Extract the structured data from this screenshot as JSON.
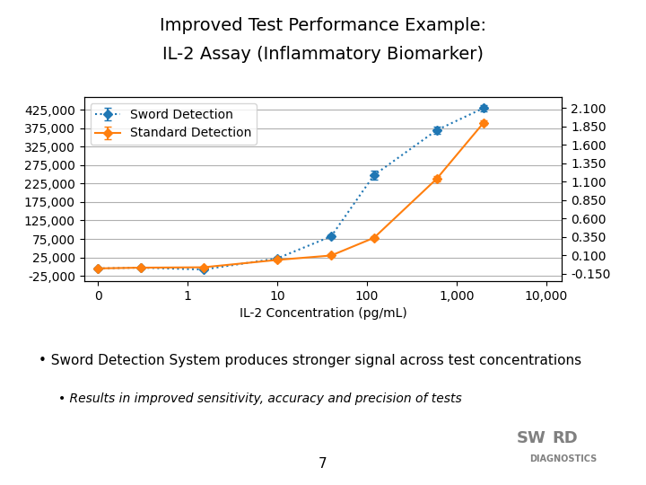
{
  "chart_data": {
    "type": "line",
    "title": "Improved Test Performance Example:",
    "subtitle": "IL-2 Assay (Inflammatory Biomarker)",
    "x_label": "IL-2 Concentration (pg/mL)",
    "log": "x",
    "x": [
      0.1,
      0.3,
      1.5,
      10,
      40,
      120,
      600,
      2000
    ],
    "series": [
      {
        "name": "Sword Detection",
        "line_style": "dotted",
        "marker": "diamond",
        "values": [
          -5000,
          -3000,
          -8000,
          22000,
          82000,
          248000,
          370000,
          430000
        ],
        "errors": [
          3000,
          2500,
          3000,
          4000,
          5000,
          12000,
          10000,
          8000
        ]
      },
      {
        "name": "Standard Detection",
        "line_style": "solid",
        "marker": "diamond",
        "values": [
          -5000,
          -3000,
          -2000,
          18000,
          30000,
          78000,
          238000,
          390000
        ],
        "errors": [
          2000,
          2000,
          2000,
          3000,
          4000,
          5000,
          8000,
          6000
        ]
      }
    ],
    "xlim": [
      0.07,
      15000
    ],
    "xticks": [
      {
        "value": 0.1,
        "label": "0"
      },
      1,
      10,
      100,
      {
        "value": 1000,
        "label": "1,000"
      },
      {
        "value": 10000,
        "label": "10,000"
      }
    ],
    "ylim": [
      -40000,
      460000
    ],
    "yticks": [
      {
        "value": -25000,
        "label": "-25,000"
      },
      {
        "value": 25000,
        "label": "25,000"
      },
      {
        "value": 75000,
        "label": "75,000"
      },
      {
        "value": 125000,
        "label": "125,000"
      },
      {
        "value": 175000,
        "label": "175,000"
      },
      {
        "value": 225000,
        "label": "225,000"
      },
      {
        "value": 275000,
        "label": "275,000"
      },
      {
        "value": 325000,
        "label": "325,000"
      },
      {
        "value": 375000,
        "label": "375,000"
      },
      {
        "value": 425000,
        "label": "425,000"
      }
    ],
    "y2lim": [
      -0.25,
      2.25
    ],
    "y2ticks": [
      {
        "value": -0.15,
        "label": "-0.150"
      },
      {
        "value": 0.1,
        "label": "0.100"
      },
      {
        "value": 0.35,
        "label": "0.350"
      },
      {
        "value": 0.6,
        "label": "0.600"
      },
      {
        "value": 0.85,
        "label": "0.850"
      },
      {
        "value": 1.1,
        "label": "1.100"
      },
      {
        "value": 1.35,
        "label": "1.350"
      },
      {
        "value": 1.6,
        "label": "1.600"
      },
      {
        "value": 1.85,
        "label": "1.850"
      },
      {
        "value": 2.1,
        "label": "2.100"
      }
    ],
    "grid": "y",
    "legend": "upper left",
    "annotations": [
      "• Sword Detection System produces stronger signal across test concentrations",
      "• Results in improved sensitivity, accuracy and precision of tests",
      "7",
      "SW",
      "RD",
      "DIAGNOSTICS"
    ]
  }
}
